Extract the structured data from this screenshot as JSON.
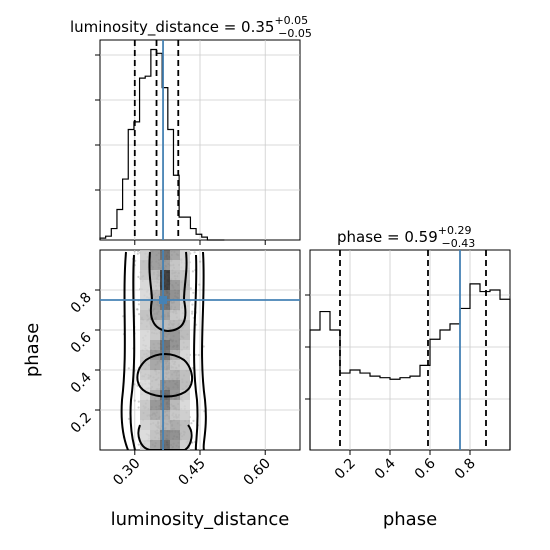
{
  "chart_data": {
    "type": "corner",
    "parameters": [
      "luminosity_distance",
      "phase"
    ],
    "luminosity_distance": {
      "title_prefix": "luminosity_distance = ",
      "median": "0.35",
      "plus": "+0.05",
      "minus": "−0.05",
      "xlim": [
        0.22,
        0.68
      ],
      "ticks": [
        0.3,
        0.45,
        0.6
      ],
      "tick_labels": [
        "0.30",
        "0.45",
        "0.60"
      ],
      "quantiles": [
        0.3,
        0.35,
        0.4
      ],
      "truth": 0.365,
      "hist_edges": [
        0.22,
        0.233,
        0.246,
        0.259,
        0.272,
        0.285,
        0.298,
        0.311,
        0.324,
        0.337,
        0.35,
        0.363,
        0.376,
        0.389,
        0.402,
        0.415,
        0.428,
        0.441,
        0.454,
        0.467,
        0.48,
        0.493,
        0.506
      ],
      "hist_counts": [
        0.01,
        0.02,
        0.06,
        0.16,
        0.32,
        0.58,
        0.62,
        0.85,
        0.86,
        1.0,
        0.98,
        0.8,
        0.58,
        0.34,
        0.12,
        0.12,
        0.06,
        0.03,
        0.015,
        0.0,
        0.0,
        0.0
      ]
    },
    "phase": {
      "title_prefix": "phase = ",
      "median": "0.59",
      "plus": "+0.29",
      "minus": "−0.43",
      "xlim": [
        0.0,
        1.0
      ],
      "ticks": [
        0.2,
        0.4,
        0.6,
        0.8
      ],
      "tick_labels": [
        "0.2",
        "0.4",
        "0.6",
        "0.8"
      ],
      "quantiles": [
        0.15,
        0.59,
        0.88
      ],
      "truth": 0.75,
      "hist_edges": [
        0.0,
        0.05,
        0.1,
        0.15,
        0.2,
        0.25,
        0.3,
        0.35,
        0.4,
        0.45,
        0.5,
        0.55,
        0.6,
        0.65,
        0.7,
        0.75,
        0.8,
        0.85,
        0.9,
        0.95,
        1.0
      ],
      "hist_counts": [
        0.78,
        0.9,
        0.78,
        0.5,
        0.52,
        0.5,
        0.48,
        0.47,
        0.46,
        0.47,
        0.48,
        0.55,
        0.72,
        0.78,
        0.82,
        0.92,
        1.08,
        1.03,
        1.04,
        0.98
      ],
      "hist_ymax": 1.3
    },
    "scatter_y_ticks": [
      0.2,
      0.4,
      0.6,
      0.8
    ],
    "scatter_y_tick_labels": [
      "0.2",
      "0.4",
      "0.6",
      "0.8"
    ],
    "scatter_ylim": [
      0.0,
      1.0
    ],
    "xlabel_left": "luminosity_distance",
    "xlabel_right": "phase",
    "ylabel": "phase",
    "truth_color": "#4682b4"
  }
}
